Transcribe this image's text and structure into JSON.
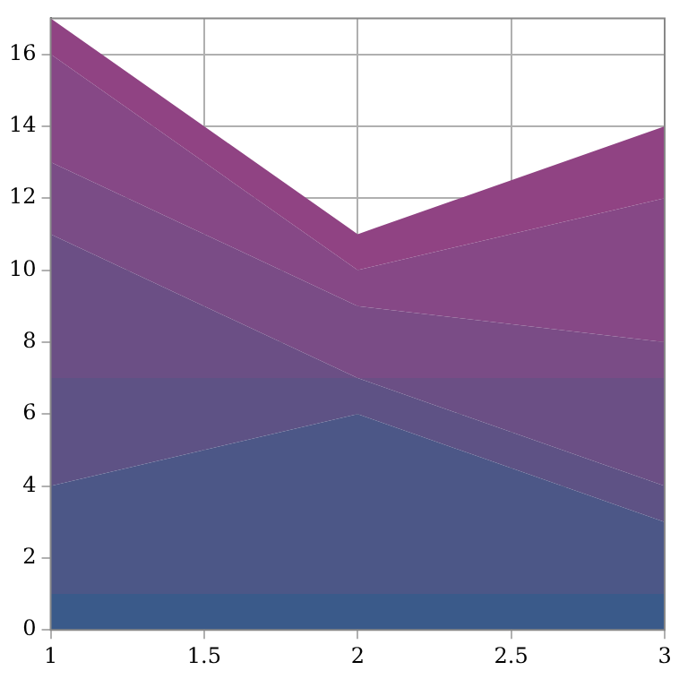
{
  "chart_data": {
    "type": "area",
    "stacked": true,
    "x": [
      1,
      2,
      3
    ],
    "series": [
      {
        "color": "#3a5a8a",
        "values": [
          1,
          1,
          1
        ]
      },
      {
        "color": "#4c5787",
        "values": [
          3,
          5,
          2
        ]
      },
      {
        "color": "#5e5285",
        "values": [
          3,
          1,
          1
        ]
      },
      {
        "color": "#6b4f85",
        "values": [
          4,
          0,
          3
        ]
      },
      {
        "color": "#7a4c86",
        "values": [
          2,
          2,
          1
        ]
      },
      {
        "color": "#864886",
        "values": [
          3,
          1,
          4
        ]
      },
      {
        "color": "#904383",
        "values": [
          1,
          1,
          2
        ]
      }
    ],
    "xlim": [
      1,
      3
    ],
    "xticks": [
      1,
      1.5,
      2,
      2.5,
      3
    ],
    "ylim": [
      0,
      17
    ],
    "yticks": [
      0,
      2,
      4,
      6,
      8,
      10,
      12,
      14,
      16
    ],
    "grid": true,
    "legend": false
  }
}
